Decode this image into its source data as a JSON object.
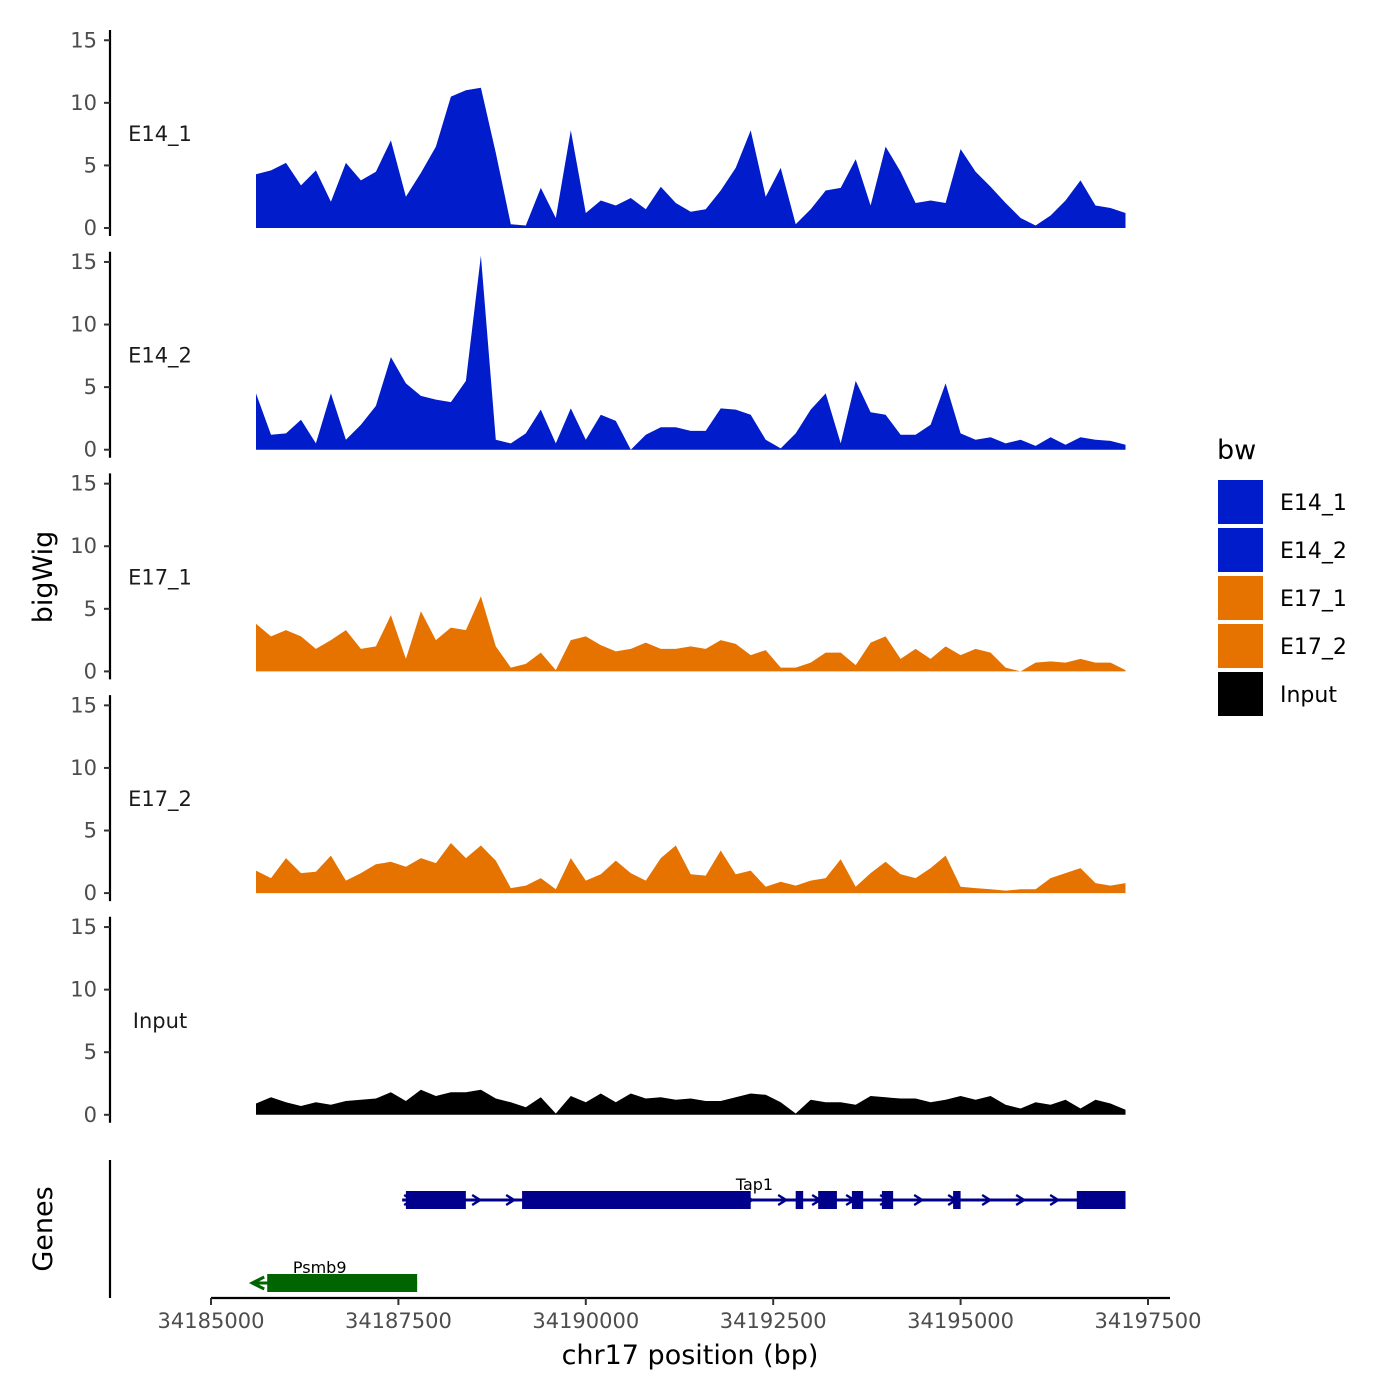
{
  "chart_data": {
    "type": "area",
    "ylabel": "bigWig",
    "xlabel": "chr17 position (bp)",
    "genes_label": "Genes",
    "ylim": [
      0,
      15.5
    ],
    "yticks": [
      0,
      5,
      10,
      15
    ],
    "xlim": [
      34185000,
      34197500
    ],
    "xticks": [
      34185000,
      34187500,
      34190000,
      34192500,
      34195000,
      34197500
    ],
    "x": [
      34185600,
      34185800,
      34186000,
      34186200,
      34186400,
      34186600,
      34186800,
      34187000,
      34187200,
      34187400,
      34187600,
      34187800,
      34188000,
      34188200,
      34188400,
      34188600,
      34188800,
      34189000,
      34189200,
      34189400,
      34189600,
      34189800,
      34190000,
      34190200,
      34190400,
      34190600,
      34190800,
      34191000,
      34191200,
      34191400,
      34191600,
      34191800,
      34192000,
      34192200,
      34192400,
      34192600,
      34192800,
      34193000,
      34193200,
      34193400,
      34193600,
      34193800,
      34194000,
      34194200,
      34194400,
      34194600,
      34194800,
      34195000,
      34195200,
      34195400,
      34195600,
      34195800,
      34196000,
      34196200,
      34196400,
      34196600,
      34196800,
      34197000,
      34197200
    ],
    "series": [
      {
        "name": "E14_1",
        "color": "#001CCB",
        "values": [
          4.3,
          4.6,
          5.2,
          3.4,
          4.6,
          2.1,
          5.2,
          3.8,
          4.5,
          7.0,
          2.5,
          4.4,
          6.5,
          10.5,
          11.0,
          11.2,
          6.0,
          0.3,
          0.2,
          3.2,
          0.8,
          7.8,
          1.2,
          2.2,
          1.8,
          2.4,
          1.5,
          3.3,
          2.0,
          1.3,
          1.5,
          3.0,
          4.8,
          7.8,
          2.5,
          4.8,
          0.3,
          1.5,
          3.0,
          3.2,
          5.5,
          1.8,
          6.5,
          4.5,
          2.0,
          2.2,
          2.0,
          6.3,
          4.5,
          3.3,
          2.0,
          0.8,
          0.2,
          1.0,
          2.2,
          3.8,
          1.8,
          1.6,
          1.2
        ]
      },
      {
        "name": "E14_2",
        "color": "#001CCB",
        "values": [
          4.5,
          1.2,
          1.3,
          2.4,
          0.5,
          4.5,
          0.8,
          2.0,
          3.5,
          7.4,
          5.3,
          4.3,
          4.0,
          3.8,
          5.5,
          15.5,
          0.8,
          0.5,
          1.3,
          3.2,
          0.5,
          3.3,
          0.8,
          2.8,
          2.3,
          0.0,
          1.2,
          1.8,
          1.8,
          1.5,
          1.5,
          3.3,
          3.2,
          2.8,
          0.8,
          0.1,
          1.3,
          3.2,
          4.5,
          0.5,
          5.5,
          3.0,
          2.8,
          1.2,
          1.2,
          2.0,
          5.3,
          1.3,
          0.8,
          1.0,
          0.5,
          0.8,
          0.3,
          1.0,
          0.4,
          1.0,
          0.8,
          0.7,
          0.4
        ]
      },
      {
        "name": "E17_1",
        "color": "#E67300",
        "values": [
          3.8,
          2.8,
          3.3,
          2.8,
          1.8,
          2.5,
          3.3,
          1.8,
          2.0,
          4.5,
          1.0,
          4.8,
          2.5,
          3.5,
          3.3,
          6.0,
          2.0,
          0.3,
          0.6,
          1.5,
          0.1,
          2.5,
          2.8,
          2.1,
          1.6,
          1.8,
          2.3,
          1.8,
          1.8,
          2.0,
          1.8,
          2.5,
          2.2,
          1.3,
          1.7,
          0.3,
          0.3,
          0.7,
          1.5,
          1.5,
          0.5,
          2.3,
          2.8,
          1.0,
          1.8,
          1.0,
          2.0,
          1.3,
          1.8,
          1.5,
          0.3,
          0.0,
          0.7,
          0.8,
          0.7,
          1.0,
          0.7,
          0.7,
          0.1
        ]
      },
      {
        "name": "E17_2",
        "color": "#E67300",
        "values": [
          1.8,
          1.2,
          2.8,
          1.6,
          1.7,
          3.0,
          1.0,
          1.6,
          2.3,
          2.5,
          2.1,
          2.8,
          2.4,
          4.0,
          2.8,
          3.8,
          2.6,
          0.4,
          0.6,
          1.2,
          0.3,
          2.8,
          1.0,
          1.5,
          2.6,
          1.6,
          1.0,
          2.8,
          3.8,
          1.5,
          1.4,
          3.4,
          1.5,
          1.8,
          0.5,
          0.9,
          0.6,
          1.0,
          1.2,
          2.7,
          0.5,
          1.6,
          2.5,
          1.5,
          1.2,
          2.0,
          3.0,
          0.5,
          0.4,
          0.3,
          0.2,
          0.3,
          0.3,
          1.2,
          1.6,
          2.0,
          0.8,
          0.6,
          0.8
        ]
      },
      {
        "name": "Input",
        "color": "#000000",
        "values": [
          0.9,
          1.4,
          1.0,
          0.7,
          1.0,
          0.8,
          1.1,
          1.2,
          1.3,
          1.8,
          1.1,
          2.0,
          1.5,
          1.8,
          1.8,
          2.0,
          1.3,
          1.0,
          0.6,
          1.4,
          0.1,
          1.5,
          1.0,
          1.7,
          1.0,
          1.7,
          1.3,
          1.4,
          1.2,
          1.3,
          1.1,
          1.1,
          1.4,
          1.7,
          1.6,
          1.0,
          0.1,
          1.2,
          1.0,
          1.0,
          0.8,
          1.5,
          1.4,
          1.3,
          1.3,
          1.0,
          1.2,
          1.5,
          1.2,
          1.5,
          0.8,
          0.5,
          1.0,
          0.8,
          1.2,
          0.5,
          1.2,
          0.9,
          0.4
        ]
      }
    ],
    "legend": {
      "title": "bw",
      "position": "right",
      "entries": [
        {
          "label": "E14_1",
          "color": "#001CCB"
        },
        {
          "label": "E14_2",
          "color": "#001CCB"
        },
        {
          "label": "E17_1",
          "color": "#E67300"
        },
        {
          "label": "E17_2",
          "color": "#E67300"
        },
        {
          "label": "Input",
          "color": "#000000"
        }
      ]
    },
    "genes": [
      {
        "name": "Tap1",
        "strand": "+",
        "color": "#00008B",
        "start": 34187550,
        "end": 34197200,
        "exons": [
          [
            34187600,
            34188400
          ],
          [
            34189150,
            34192200
          ],
          [
            34192800,
            34192900
          ],
          [
            34193100,
            34193350
          ],
          [
            34193550,
            34193700
          ],
          [
            34193950,
            34194100
          ],
          [
            34194900,
            34195000
          ],
          [
            34196550,
            34197200
          ]
        ]
      },
      {
        "name": "Psmb9",
        "strand": "-",
        "color": "#006400",
        "start": 34185550,
        "end": 34187750,
        "exons": [
          [
            34185750,
            34187750
          ]
        ]
      }
    ]
  }
}
